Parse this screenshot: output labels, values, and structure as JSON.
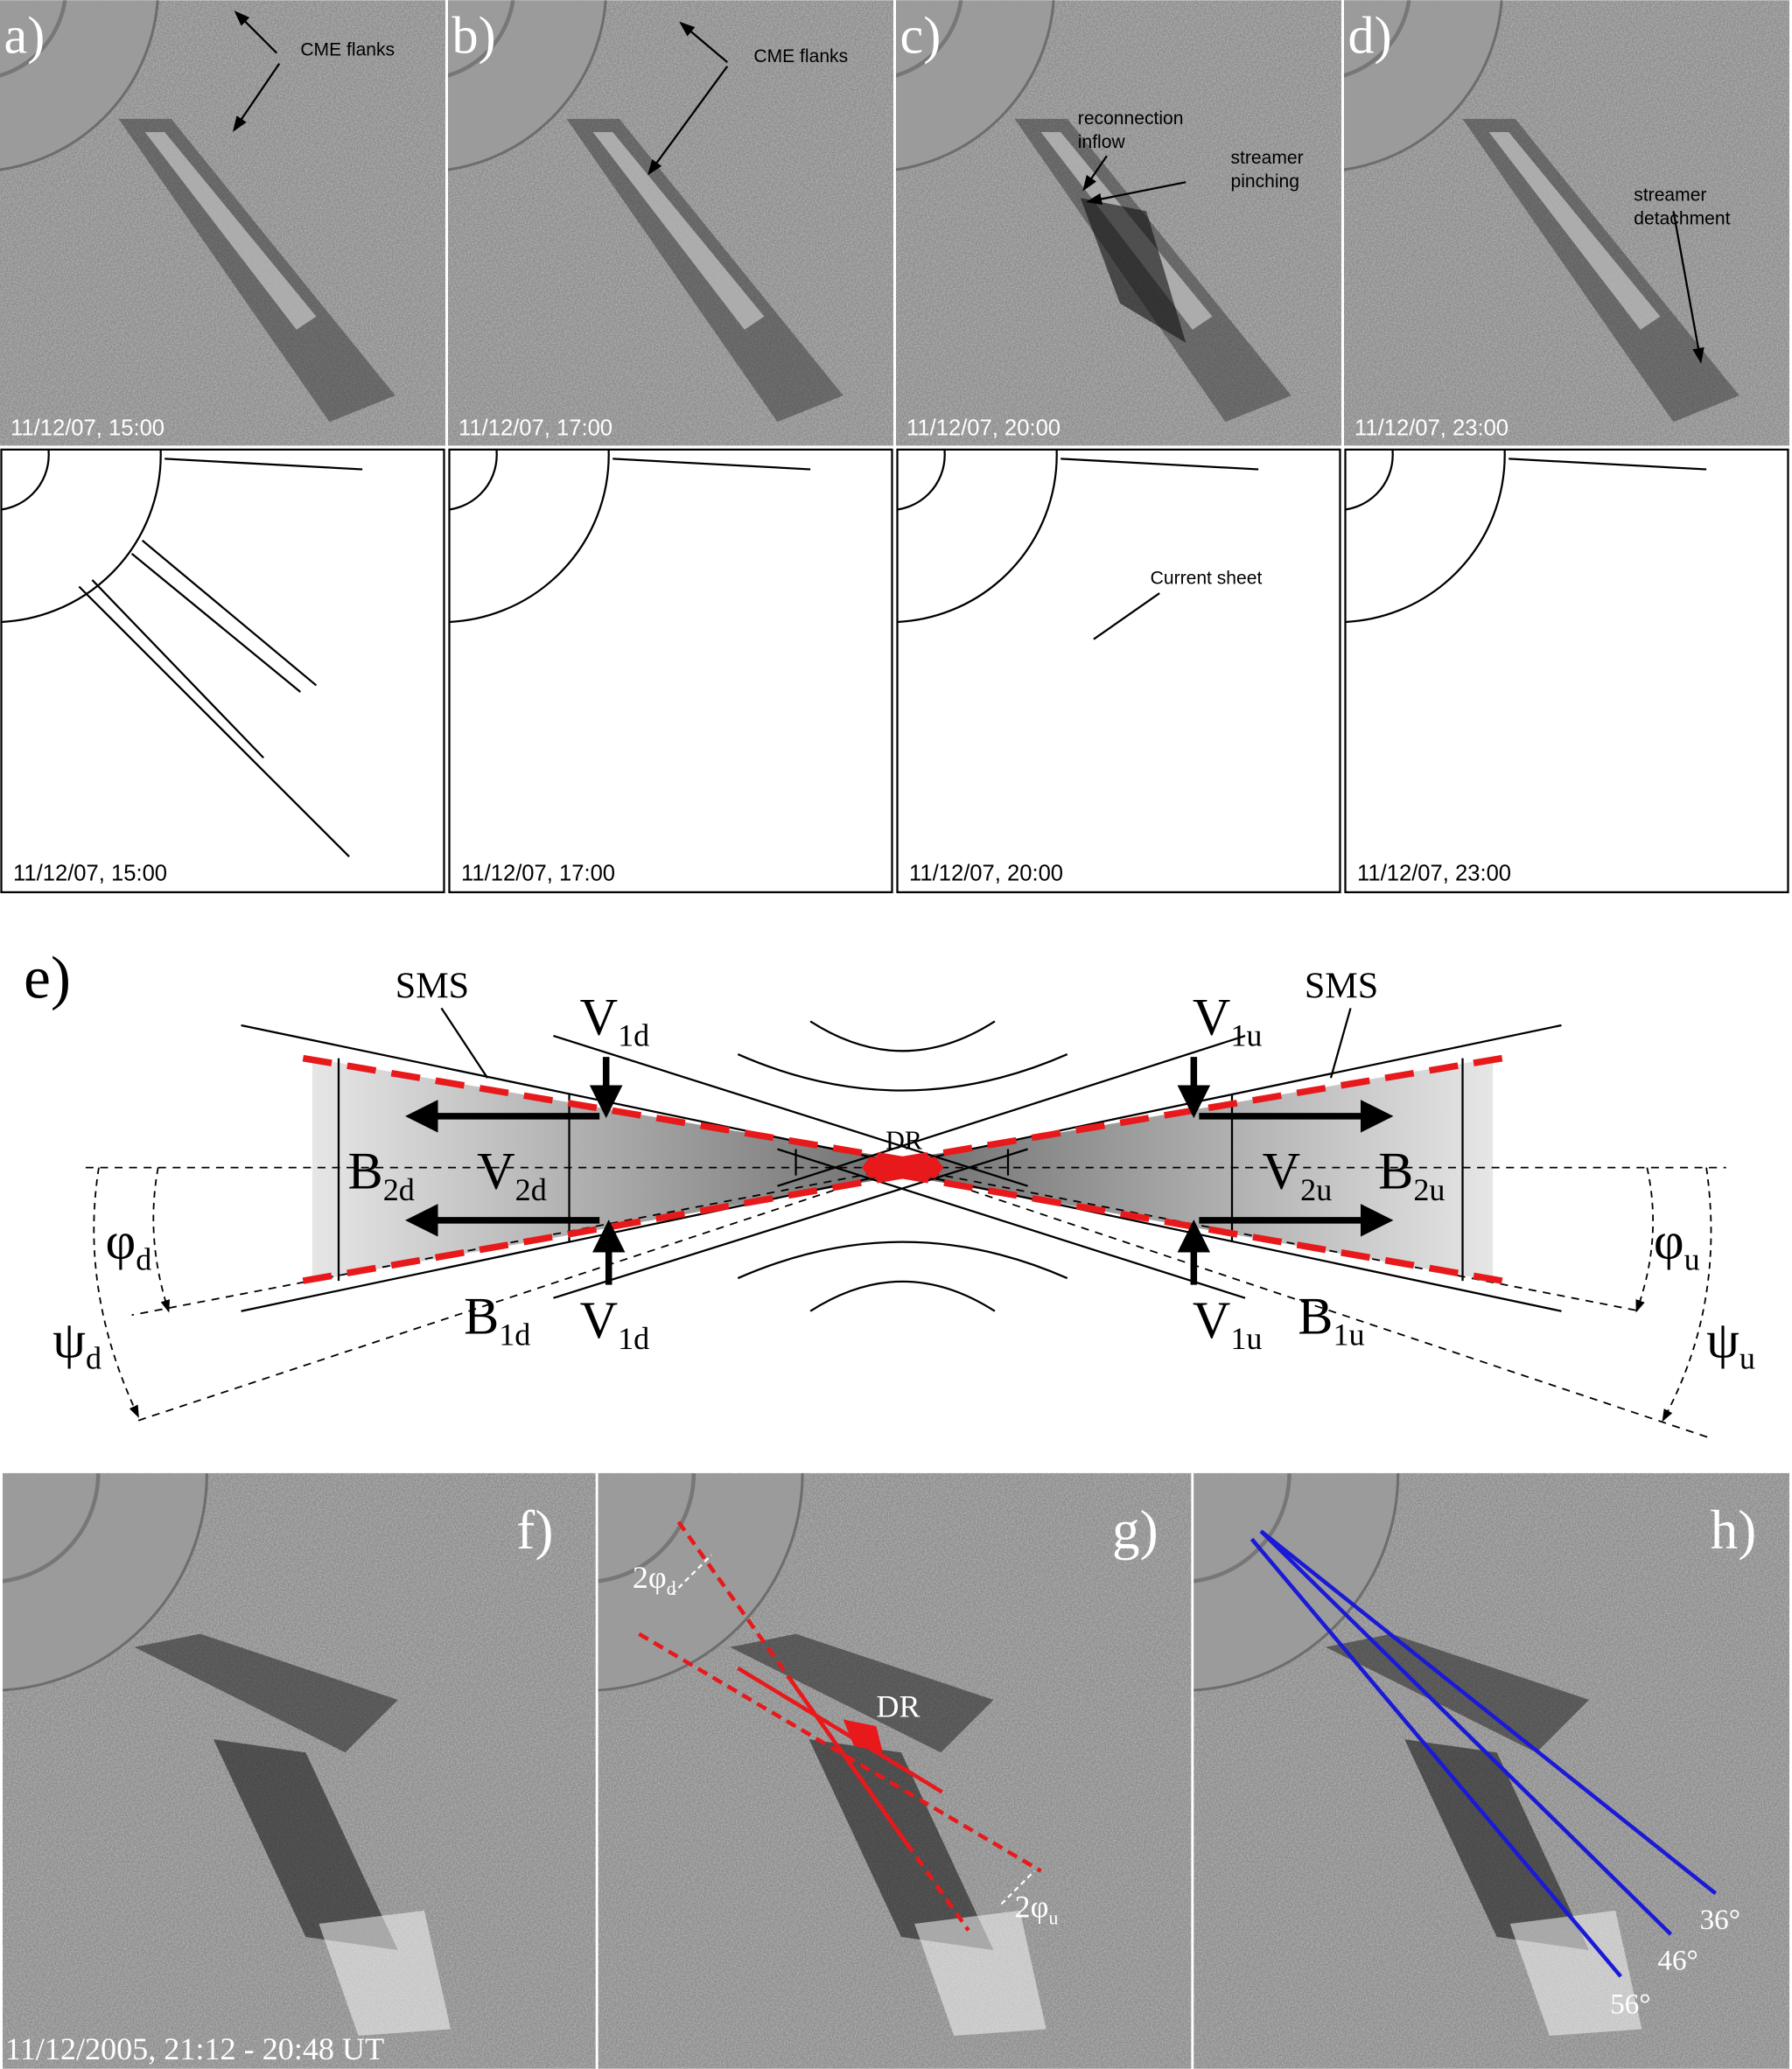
{
  "top_panels": [
    {
      "label": "a)",
      "timestamp": "11/12/07, 15:00",
      "annotations": [
        [
          "CME flanks"
        ]
      ]
    },
    {
      "label": "b)",
      "timestamp": "11/12/07, 17:00",
      "annotations": [
        [
          "CME flanks"
        ]
      ]
    },
    {
      "label": "c)",
      "timestamp": "11/12/07, 20:00",
      "annotations": [
        [
          "reconnection",
          "inflow"
        ],
        [
          "streamer",
          "pinching"
        ]
      ]
    },
    {
      "label": "d)",
      "timestamp": "11/12/07, 23:00",
      "annotations": [
        [
          "streamer",
          "detachment"
        ]
      ]
    }
  ],
  "sketch_panels": [
    {
      "timestamp": "11/12/07, 15:00"
    },
    {
      "timestamp": "11/12/07, 17:00"
    },
    {
      "timestamp": "11/12/07, 20:00",
      "annotation": "Current sheet"
    },
    {
      "timestamp": "11/12/07, 23:00"
    }
  ],
  "diagram": {
    "label": "e)",
    "sms": [
      "SMS",
      "SMS"
    ],
    "dr": "DR",
    "symbols": [
      {
        "text": "V",
        "sub": "1d"
      },
      {
        "text": "V",
        "sub": "1d"
      },
      {
        "text": "V",
        "sub": "1u"
      },
      {
        "text": "V",
        "sub": "1u"
      },
      {
        "text": "V",
        "sub": "2d"
      },
      {
        "text": "V",
        "sub": "2u"
      },
      {
        "text": "B",
        "sub": "2d"
      },
      {
        "text": "B",
        "sub": "2u"
      },
      {
        "text": "B",
        "sub": "1d"
      },
      {
        "text": "B",
        "sub": "1u"
      },
      {
        "text": "φ",
        "sub": "d"
      },
      {
        "text": "φ",
        "sub": "u"
      },
      {
        "text": "ψ",
        "sub": "d"
      },
      {
        "text": "ψ",
        "sub": "u"
      }
    ]
  },
  "bottom_panels": [
    {
      "label": "f)",
      "timestamp": "11/12/2005, 21:12 - 20:48 UT"
    },
    {
      "label": "g)",
      "annotations": [
        {
          "text": "2φ",
          "sub": "d"
        },
        {
          "text": "DR"
        },
        {
          "text": "2φ",
          "sub": "u"
        }
      ]
    },
    {
      "label": "h)",
      "angles": [
        "36°",
        "46°",
        "56°"
      ]
    }
  ]
}
